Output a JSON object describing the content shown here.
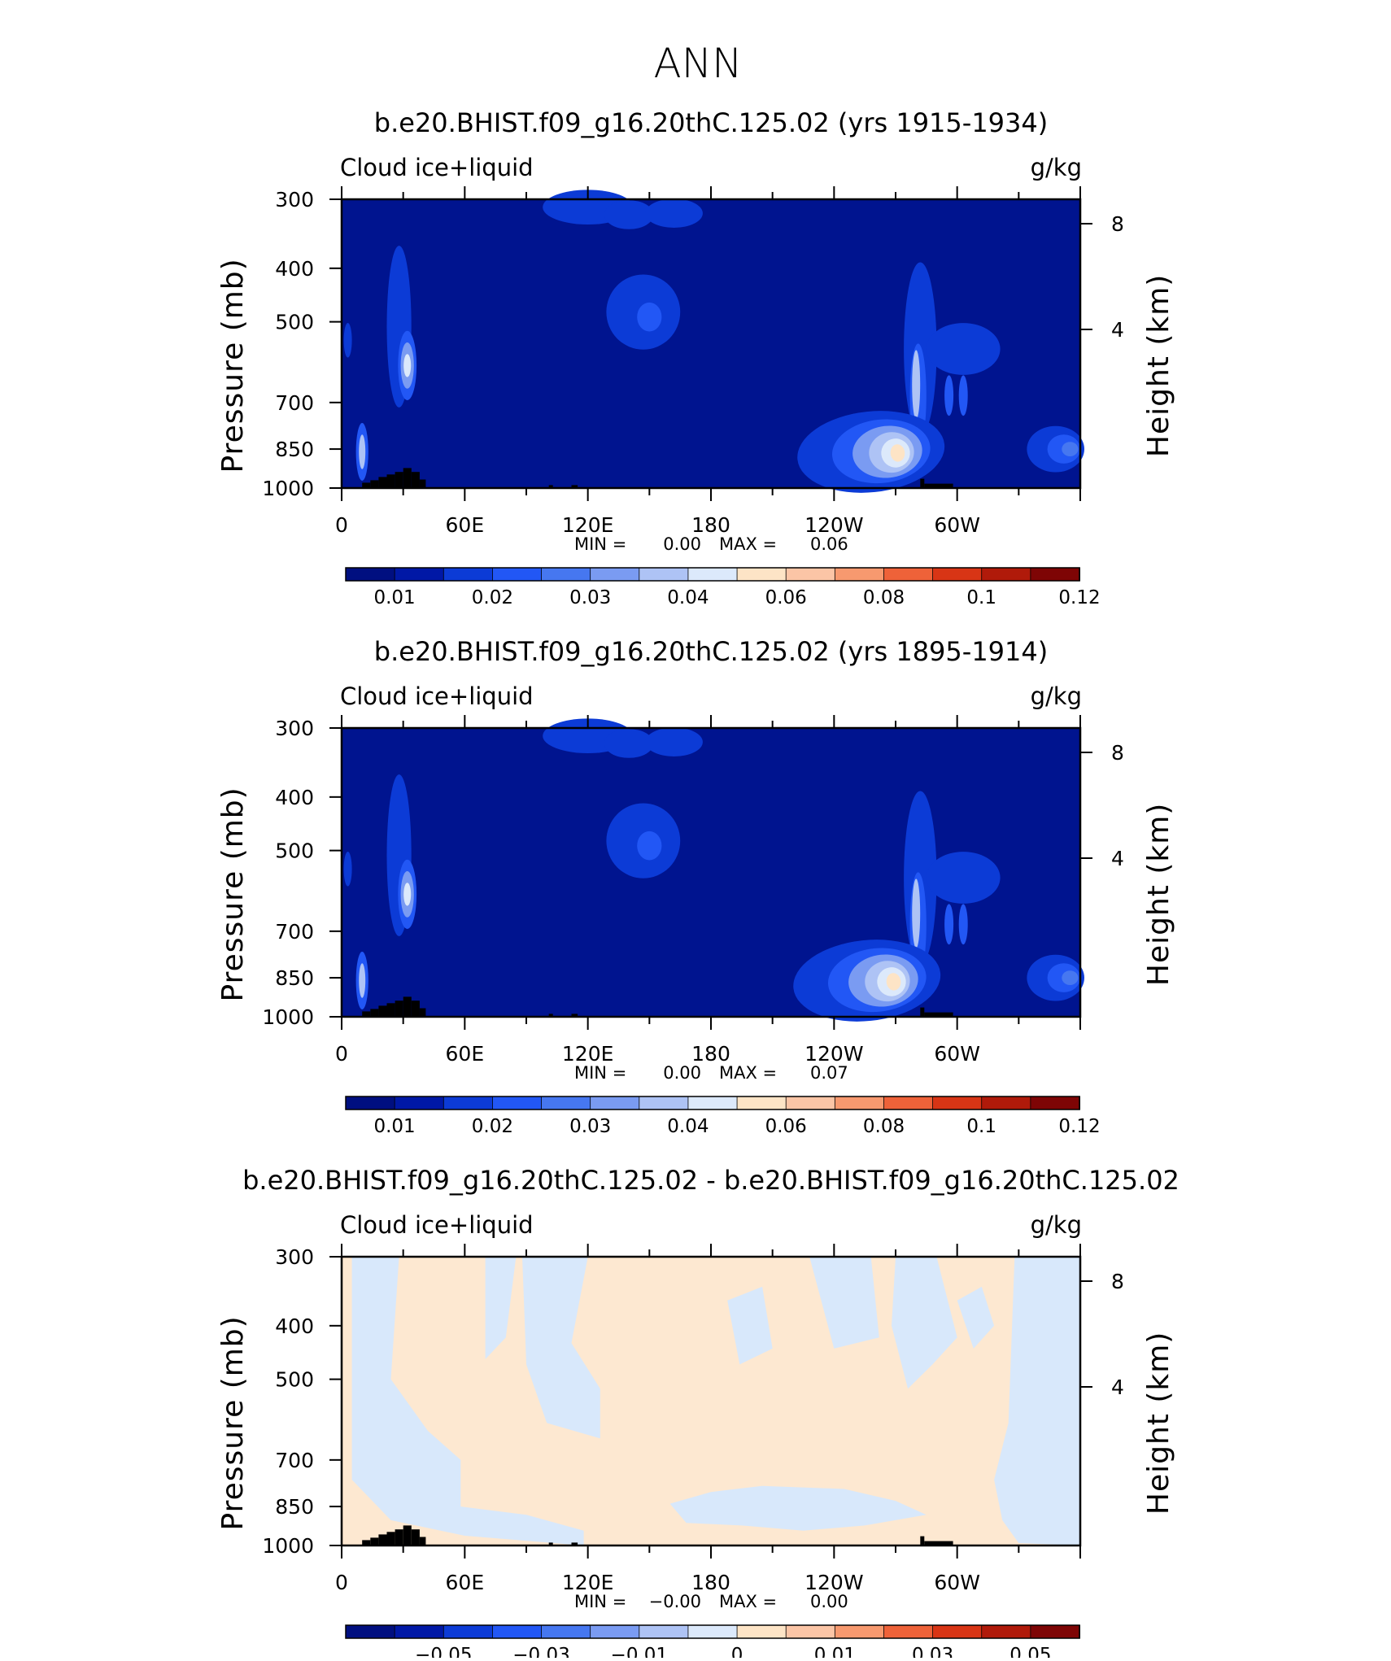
{
  "page": {
    "main_title": "ANN"
  },
  "colors": {
    "scale_seq": [
      "#000f80",
      "#0018a6",
      "#0c3bd6",
      "#2257f5",
      "#4677f0",
      "#7a9bf2",
      "#aec3f5",
      "#dce9fb",
      "#fde4c6",
      "#fbc5a6",
      "#f7996f",
      "#ee6239",
      "#d83515",
      "#b01a0a",
      "#7e0505"
    ],
    "scale_diff": [
      "#000f80",
      "#0018a6",
      "#0c3bd6",
      "#2257f5",
      "#4677f0",
      "#7a9bf2",
      "#aec3f5",
      "#dce9fb",
      "#fde4c6",
      "#fbc5a6",
      "#f7996f",
      "#ee6239",
      "#d83515",
      "#b01a0a",
      "#7e0505"
    ],
    "background_field": "#00148f",
    "diff_pos": "#fde8d1",
    "diff_neg": "#d8e8fb",
    "topography": "#000000"
  },
  "chart_data": [
    {
      "type": "heatmap",
      "title": "b.e20.BHIST.f09_g16.20thC.125.02 (yrs 1915-1934)",
      "variable": "Cloud ice+liquid",
      "units": "g/kg",
      "ylabel": "Pressure (mb)",
      "ylabel_right": "Height (km)",
      "x_ticks": [
        "0",
        "60E",
        "120E",
        "180",
        "120W",
        "60W"
      ],
      "x_range": [
        0,
        360
      ],
      "y_ticks": [
        "300",
        "400",
        "500",
        "700",
        "850",
        "1000"
      ],
      "y_range": [
        1000,
        300
      ],
      "y_scale": "log",
      "right_ticks": [
        "8",
        "4"
      ],
      "min_label": "MIN =",
      "min_value": "0.00",
      "max_label": "MAX =",
      "max_value": "0.06",
      "colorbar_labels": [
        "0.01",
        "0.02",
        "0.03",
        "0.04",
        "0.06",
        "0.08",
        "0.1",
        "0.12"
      ]
    },
    {
      "type": "heatmap",
      "title": "b.e20.BHIST.f09_g16.20thC.125.02 (yrs 1895-1914)",
      "variable": "Cloud ice+liquid",
      "units": "g/kg",
      "ylabel": "Pressure (mb)",
      "ylabel_right": "Height (km)",
      "x_ticks": [
        "0",
        "60E",
        "120E",
        "180",
        "120W",
        "60W"
      ],
      "x_range": [
        0,
        360
      ],
      "y_ticks": [
        "300",
        "400",
        "500",
        "700",
        "850",
        "1000"
      ],
      "y_range": [
        1000,
        300
      ],
      "y_scale": "log",
      "right_ticks": [
        "8",
        "4"
      ],
      "min_label": "MIN =",
      "min_value": "0.00",
      "max_label": "MAX =",
      "max_value": "0.07",
      "colorbar_labels": [
        "0.01",
        "0.02",
        "0.03",
        "0.04",
        "0.06",
        "0.08",
        "0.1",
        "0.12"
      ]
    },
    {
      "type": "heatmap",
      "title": "b.e20.BHIST.f09_g16.20thC.125.02 - b.e20.BHIST.f09_g16.20thC.125.02",
      "variable": "Cloud ice+liquid",
      "units": "g/kg",
      "ylabel": "Pressure (mb)",
      "ylabel_right": "Height (km)",
      "x_ticks": [
        "0",
        "60E",
        "120E",
        "180",
        "120W",
        "60W"
      ],
      "x_range": [
        0,
        360
      ],
      "y_ticks": [
        "300",
        "400",
        "500",
        "700",
        "850",
        "1000"
      ],
      "y_range": [
        1000,
        300
      ],
      "y_scale": "log",
      "right_ticks": [
        "8",
        "4"
      ],
      "min_label": "MIN =",
      "min_value": "−0.00",
      "max_label": "MAX =",
      "max_value": "0.00",
      "colorbar_labels": [
        "−0.05",
        "−0.03",
        "−0.01",
        "0",
        "0.01",
        "0.03",
        "0.05"
      ]
    }
  ]
}
